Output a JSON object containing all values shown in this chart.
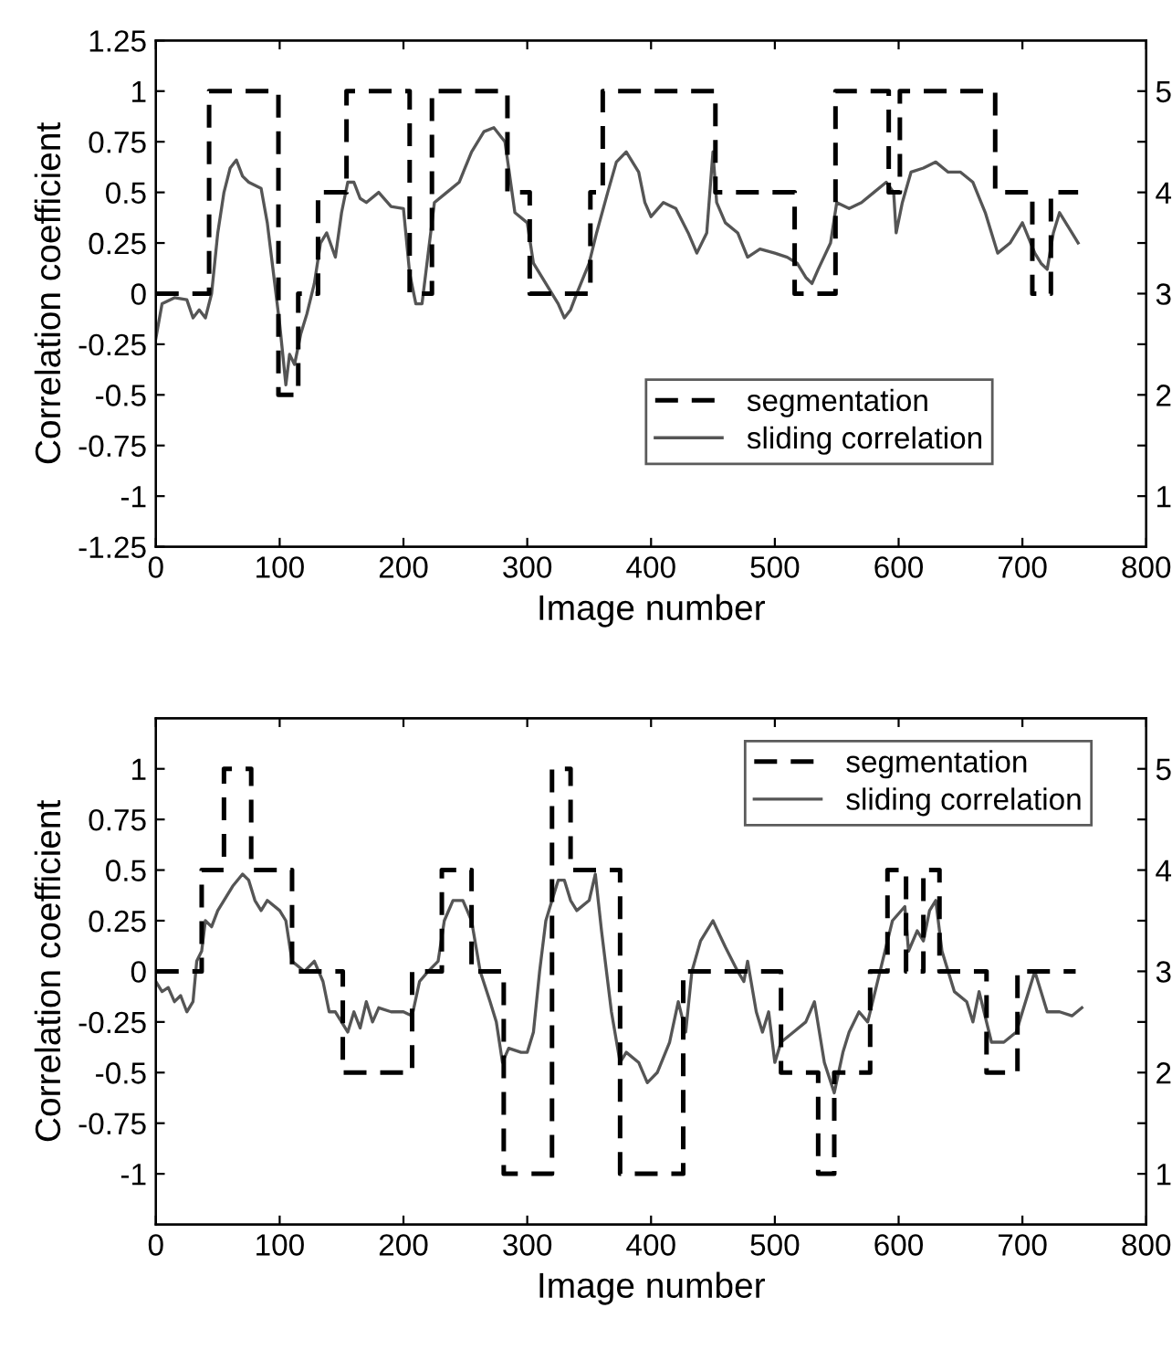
{
  "chart_data": [
    {
      "type": "line",
      "xlabel": "Image number",
      "ylabel": "Correlation coefficient",
      "xlim": [
        0,
        800
      ],
      "xticks": [
        0,
        100,
        200,
        300,
        400,
        500,
        600,
        700,
        800
      ],
      "ylim": [
        -1.25,
        1.25
      ],
      "yticks": [
        -1.25,
        -1,
        -0.75,
        -0.5,
        -0.25,
        0,
        0.25,
        0.5,
        0.75,
        1,
        1.25
      ],
      "y2lim": [
        0.5,
        5.5
      ],
      "y2ticks": [
        1,
        {
          "value": 1.5,
          "label": null
        },
        2,
        {
          "value": 2.5,
          "label": null
        },
        3,
        {
          "value": 3.5,
          "label": null
        },
        4,
        {
          "value": 4.5,
          "label": null
        },
        5
      ],
      "legend": "right",
      "grid": false,
      "series": [
        {
          "name": "segmentation",
          "type": "step",
          "axis": "y2",
          "color": "#000000",
          "line_style": "dashed",
          "x": [
            0,
            43,
            99,
            115,
            131,
            154,
            205,
            223,
            284,
            302,
            351,
            361,
            452,
            516,
            549,
            592,
            601,
            678,
            708,
            723,
            745
          ],
          "values": [
            3,
            5,
            2,
            3,
            4,
            5,
            3,
            5,
            4,
            3,
            4,
            5,
            4,
            3,
            5,
            4,
            5,
            4,
            3,
            4,
            4
          ]
        },
        {
          "name": "sliding correlation",
          "color": "#555555",
          "line_style": "solid",
          "x": [
            0,
            5,
            15,
            25,
            30,
            35,
            40,
            45,
            50,
            55,
            60,
            65,
            70,
            75,
            85,
            90,
            95,
            100,
            105,
            108,
            112,
            117,
            122,
            128,
            133,
            138,
            145,
            150,
            155,
            160,
            165,
            170,
            180,
            190,
            200,
            205,
            210,
            215,
            220,
            225,
            235,
            245,
            255,
            265,
            273,
            282,
            290,
            300,
            305,
            315,
            325,
            330,
            335,
            340,
            350,
            356,
            365,
            372,
            380,
            390,
            395,
            400,
            410,
            420,
            430,
            437,
            445,
            450,
            453,
            460,
            470,
            478,
            488,
            500,
            510,
            518,
            525,
            530,
            535,
            545,
            550,
            560,
            570,
            580,
            590,
            596,
            598,
            603,
            610,
            620,
            630,
            640,
            650,
            660,
            670,
            680,
            690,
            700,
            710,
            715,
            720,
            725,
            730,
            740,
            745
          ],
          "values": [
            -0.22,
            -0.05,
            -0.02,
            -0.03,
            -0.12,
            -0.08,
            -0.12,
            0.0,
            0.3,
            0.5,
            0.62,
            0.66,
            0.58,
            0.55,
            0.52,
            0.35,
            0.1,
            -0.15,
            -0.45,
            -0.3,
            -0.35,
            -0.2,
            -0.1,
            0.05,
            0.25,
            0.3,
            0.18,
            0.4,
            0.55,
            0.55,
            0.47,
            0.45,
            0.5,
            0.43,
            0.42,
            0.1,
            -0.05,
            -0.05,
            0.2,
            0.45,
            0.5,
            0.55,
            0.7,
            0.8,
            0.82,
            0.75,
            0.4,
            0.35,
            0.15,
            0.05,
            -0.05,
            -0.12,
            -0.08,
            0.0,
            0.15,
            0.3,
            0.5,
            0.65,
            0.7,
            0.6,
            0.45,
            0.38,
            0.45,
            0.42,
            0.3,
            0.2,
            0.3,
            0.7,
            0.45,
            0.35,
            0.3,
            0.18,
            0.22,
            0.2,
            0.18,
            0.15,
            0.08,
            0.05,
            0.12,
            0.25,
            0.45,
            0.42,
            0.45,
            0.5,
            0.55,
            0.5,
            0.3,
            0.45,
            0.6,
            0.62,
            0.65,
            0.6,
            0.6,
            0.55,
            0.4,
            0.2,
            0.25,
            0.35,
            0.2,
            0.15,
            0.12,
            0.3,
            0.4,
            0.3,
            0.25
          ]
        }
      ]
    },
    {
      "type": "line",
      "xlabel": "Image number",
      "ylabel": "Correlation coefficient",
      "xlim": [
        0,
        800
      ],
      "xticks": [
        0,
        100,
        200,
        300,
        400,
        500,
        600,
        700,
        800
      ],
      "ylim": [
        -1.25,
        1.25
      ],
      "yticks": [
        -1,
        -0.75,
        -0.5,
        -0.25,
        0,
        0.25,
        0.5,
        0.75,
        1
      ],
      "y2lim": [
        0.5,
        5.5
      ],
      "y2ticks": [
        1,
        {
          "value": 1.5,
          "label": null
        },
        2,
        {
          "value": 2.5,
          "label": null
        },
        3,
        {
          "value": 3.5,
          "label": null
        },
        4,
        {
          "value": 4.5,
          "label": null
        },
        5
      ],
      "legend": "top right",
      "grid": false,
      "series": [
        {
          "name": "segmentation",
          "type": "step",
          "axis": "y2",
          "color": "#000000",
          "line_style": "dashed",
          "x": [
            0,
            37,
            55,
            77,
            110,
            151,
            207,
            231,
            255,
            281,
            320,
            335,
            375,
            426,
            505,
            535,
            548,
            577,
            591,
            606,
            620,
            633,
            671,
            696,
            743
          ],
          "values": [
            3,
            4,
            5,
            4,
            3,
            2,
            3,
            4,
            3,
            1,
            5,
            4,
            1,
            3,
            2,
            1,
            2,
            3,
            4,
            3,
            4,
            3,
            2,
            3,
            3
          ]
        },
        {
          "name": "sliding correlation",
          "color": "#555555",
          "line_style": "solid",
          "x": [
            0,
            5,
            10,
            15,
            20,
            25,
            30,
            33,
            37,
            40,
            45,
            50,
            55,
            62,
            70,
            75,
            80,
            85,
            90,
            100,
            105,
            110,
            120,
            128,
            135,
            140,
            145,
            150,
            155,
            160,
            165,
            170,
            175,
            180,
            190,
            200,
            207,
            213,
            220,
            228,
            233,
            240,
            248,
            255,
            262,
            270,
            275,
            280,
            285,
            295,
            300,
            305,
            310,
            315,
            320,
            325,
            330,
            335,
            340,
            350,
            355,
            360,
            368,
            375,
            380,
            390,
            397,
            405,
            415,
            422,
            428,
            433,
            440,
            450,
            460,
            470,
            475,
            478,
            485,
            490,
            495,
            500,
            505,
            515,
            525,
            532,
            540,
            548,
            555,
            560,
            568,
            575,
            585,
            595,
            605,
            608,
            615,
            620,
            625,
            630,
            635,
            645,
            655,
            660,
            665,
            675,
            685,
            695,
            700,
            710,
            715,
            720,
            730,
            740,
            748
          ],
          "values": [
            -0.05,
            -0.1,
            -0.08,
            -0.15,
            -0.12,
            -0.2,
            -0.15,
            0.05,
            0.1,
            0.25,
            0.22,
            0.3,
            0.35,
            0.42,
            0.48,
            0.45,
            0.35,
            0.3,
            0.35,
            0.3,
            0.25,
            0.05,
            0.0,
            0.05,
            -0.05,
            -0.2,
            -0.2,
            -0.25,
            -0.3,
            -0.2,
            -0.28,
            -0.15,
            -0.25,
            -0.18,
            -0.2,
            -0.2,
            -0.22,
            -0.05,
            0.0,
            0.05,
            0.25,
            0.35,
            0.35,
            0.25,
            0.0,
            -0.15,
            -0.25,
            -0.45,
            -0.38,
            -0.4,
            -0.4,
            -0.3,
            0.0,
            0.25,
            0.35,
            0.45,
            0.45,
            0.35,
            0.3,
            0.35,
            0.48,
            0.2,
            -0.2,
            -0.45,
            -0.4,
            -0.45,
            -0.55,
            -0.5,
            -0.35,
            -0.15,
            -0.3,
            0.0,
            0.15,
            0.25,
            0.12,
            0.0,
            -0.05,
            0.05,
            -0.2,
            -0.3,
            -0.2,
            -0.45,
            -0.35,
            -0.3,
            -0.25,
            -0.15,
            -0.45,
            -0.6,
            -0.4,
            -0.3,
            -0.2,
            -0.25,
            0.0,
            0.25,
            0.32,
            0.1,
            0.2,
            0.15,
            0.3,
            0.35,
            0.1,
            -0.1,
            -0.15,
            -0.25,
            -0.1,
            -0.35,
            -0.35,
            -0.3,
            -0.2,
            0.0,
            -0.1,
            -0.2,
            -0.2,
            -0.22,
            -0.18
          ]
        }
      ]
    }
  ]
}
